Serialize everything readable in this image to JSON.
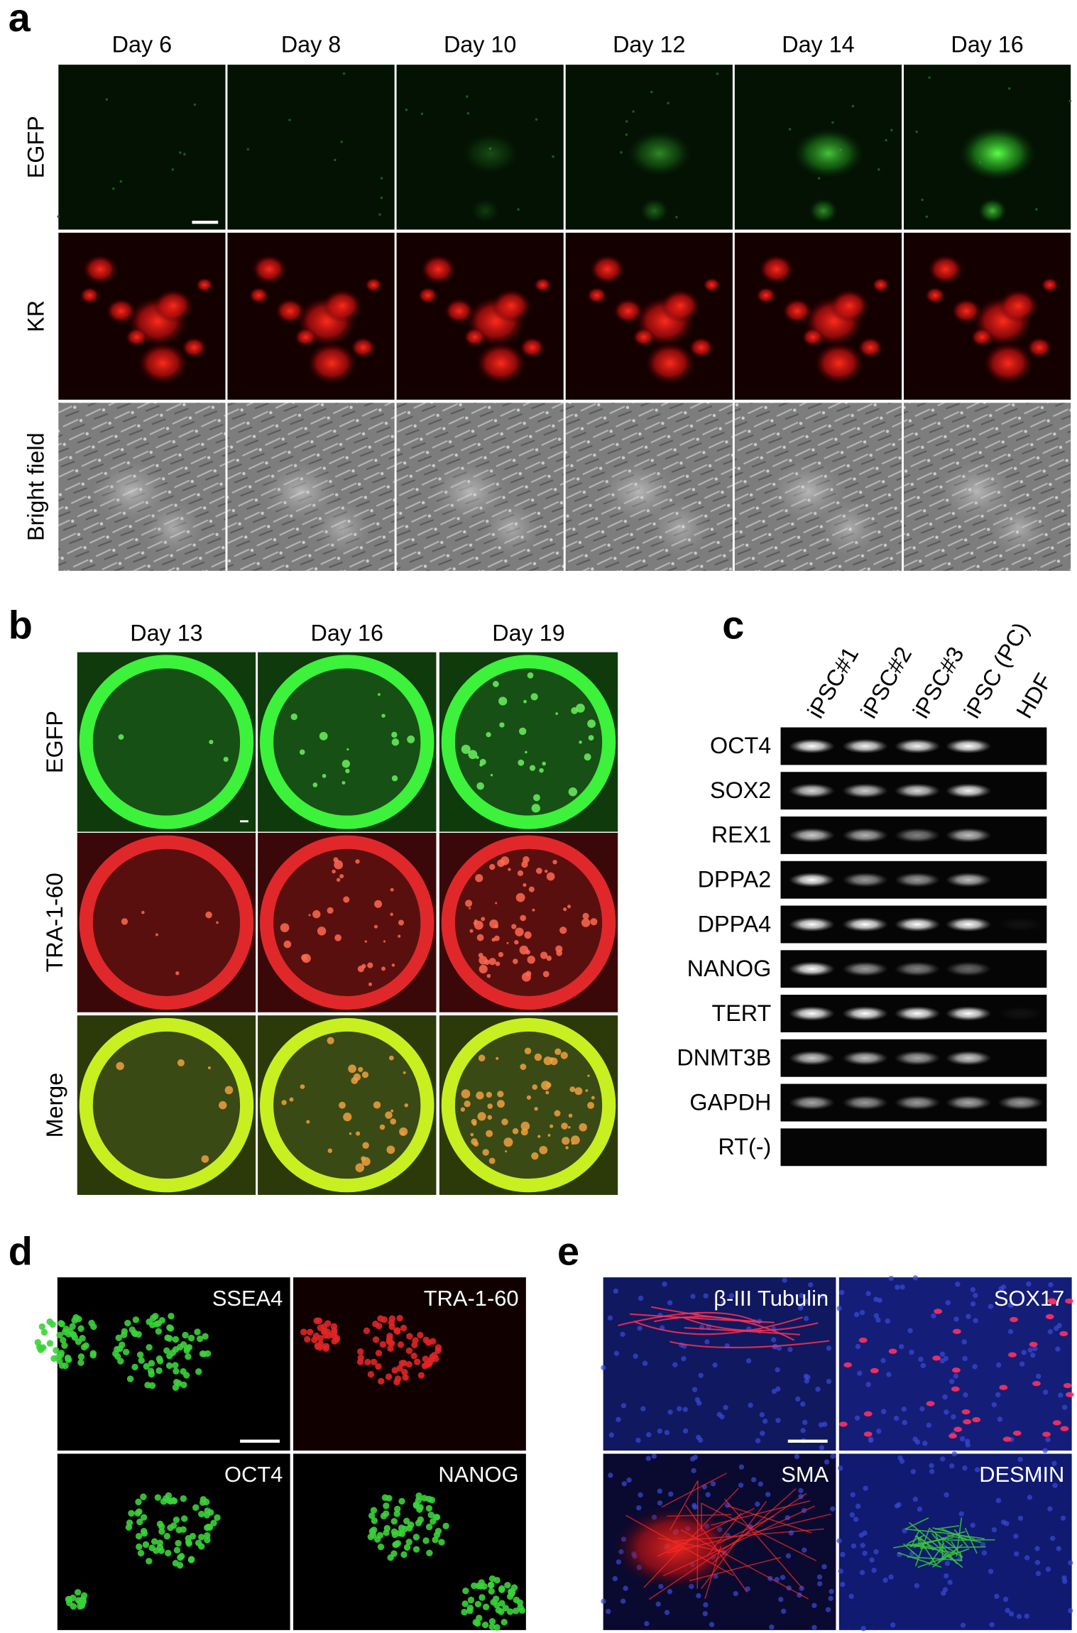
{
  "panel_labels": [
    "a",
    "b",
    "c",
    "d",
    "e"
  ],
  "a": {
    "columns": [
      "Day 6",
      "Day 8",
      "Day 10",
      "Day 12",
      "Day 14",
      "Day 16"
    ],
    "rows": [
      "EGFP",
      "KR",
      "Bright field"
    ]
  },
  "b": {
    "columns": [
      "Day 13",
      "Day 16",
      "Day 19"
    ],
    "rows": [
      "EGFP",
      "TRA-1-60",
      "Merge"
    ]
  },
  "c": {
    "lanes": [
      "iPSC#1",
      "iPSC#2",
      "iPSC#3",
      "iPSC (PC)",
      "HDF"
    ],
    "genes": [
      "OCT4",
      "SOX2",
      "REX1",
      "DPPA2",
      "DPPA4",
      "NANOG",
      "TERT",
      "DNMT3B",
      "GAPDH",
      "RT(-)"
    ]
  },
  "d": {
    "labels": [
      "SSEA4",
      "TRA-1-60",
      "OCT4",
      "NANOG"
    ]
  },
  "e": {
    "labels": [
      "β-III Tubulin",
      "SOX17",
      "SMA",
      "DESMIN"
    ]
  }
}
